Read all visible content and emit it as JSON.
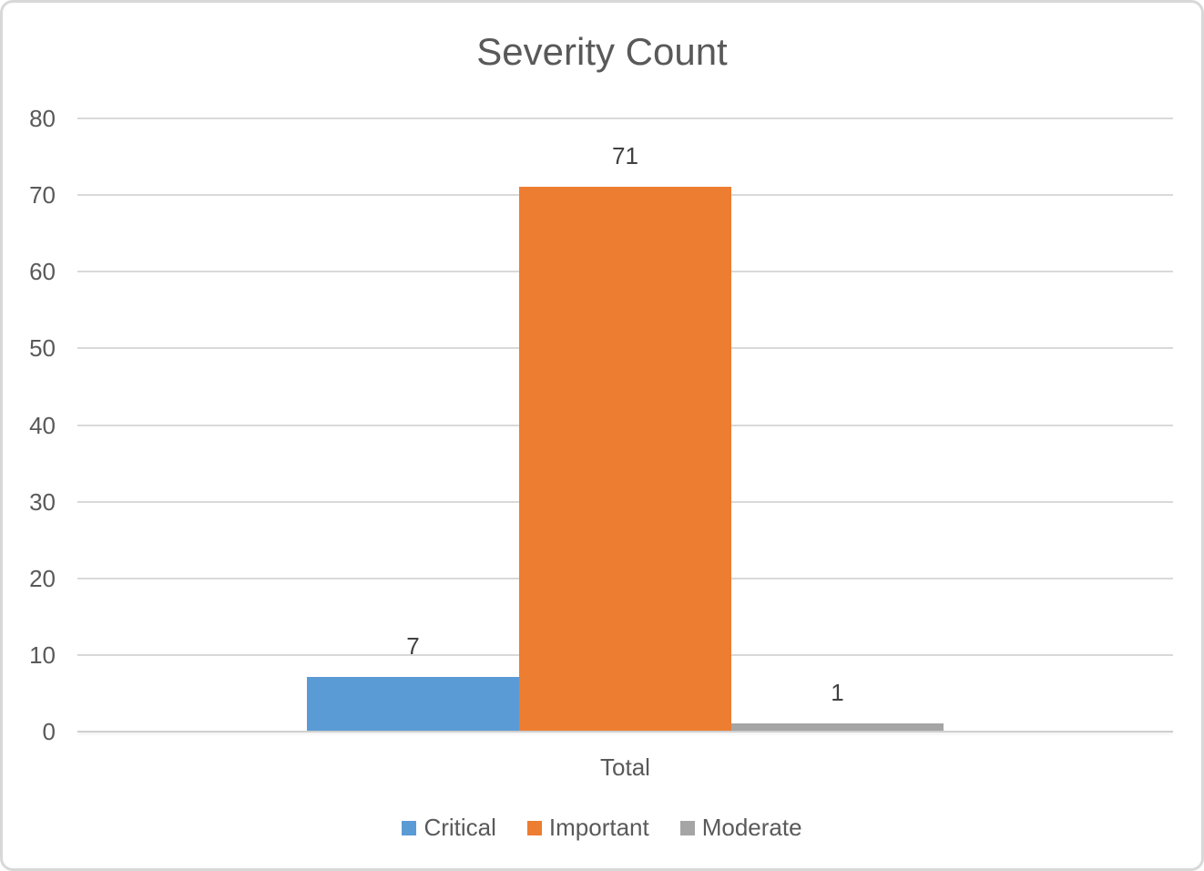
{
  "chart_data": {
    "type": "bar",
    "title": "Severity Count",
    "categories": [
      "Total"
    ],
    "series": [
      {
        "name": "Critical",
        "color": "#5B9BD5",
        "values": [
          7
        ]
      },
      {
        "name": "Important",
        "color": "#ED7D31",
        "values": [
          71
        ]
      },
      {
        "name": "Moderate",
        "color": "#A5A5A5",
        "values": [
          1
        ]
      }
    ],
    "data_labels": [
      "7",
      "71",
      "1"
    ],
    "ylim": [
      0,
      80
    ],
    "yticks": [
      "0",
      "10",
      "20",
      "30",
      "40",
      "50",
      "60",
      "70",
      "80"
    ],
    "xlabel": "",
    "ylabel": "",
    "grid": true,
    "legend_position": "bottom"
  },
  "styles": {
    "title_color": "#595959",
    "axis_text_color": "#595959",
    "data_label_color": "#404040",
    "gridline_color": "#D9D9D9",
    "axis_line_color": "#CFCFCF",
    "frame_border_color": "#D8D8D8",
    "background": "#FFFFFF"
  }
}
